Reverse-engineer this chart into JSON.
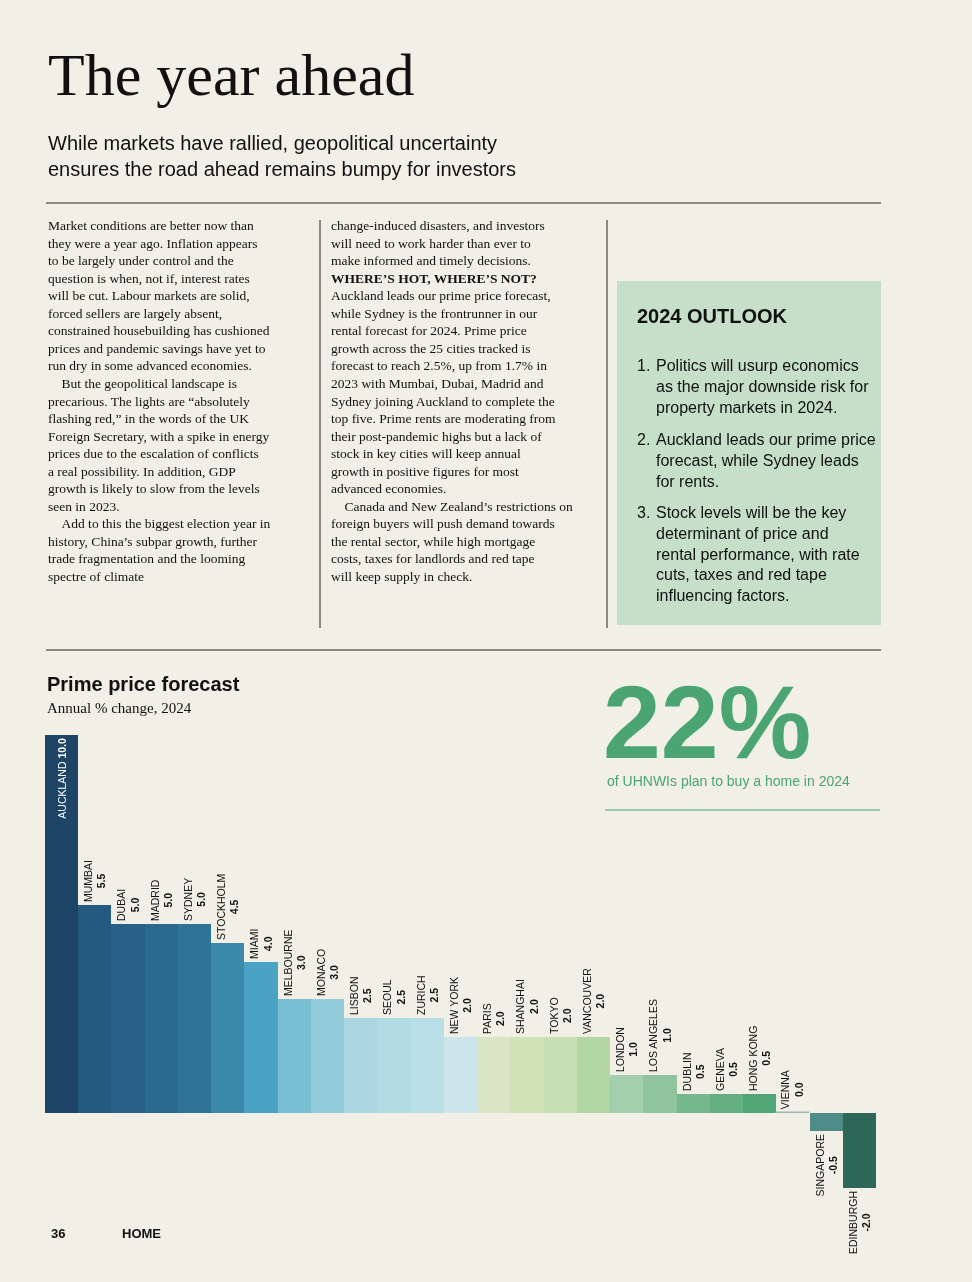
{
  "chart_data": [
    {
      "type": "other",
      "title": "The year ahead",
      "subtitle": "While markets have rallied, geopolitical uncertainty ensures the road ahead remains bumpy for investors",
      "annotations": [
        "Market conditions are better now than they were a year ago. Inflation appears to be largely under control and the question is when, not if, interest rates will be cut. Labour markets are solid, forced sellers are largely absent, constrained housebuilding has cushioned prices and pandemic savings have yet to run dry in some advanced economies.",
        "But the geopolitical landscape is precarious. The lights are “absolutely flashing red,” in the words of the UK Foreign Secretary, with a spike in energy prices due to the escalation of conflicts a real possibility. In addition, GDP growth is likely to slow from the levels seen in 2023.",
        "Add to this the biggest election year in history, China’s subpar growth, further trade fragmentation and the looming spectre of climate",
        "change-induced disasters, and investors will need to work harder than ever to make informed and timely decisions.",
        "WHERE’S HOT, WHERE’S NOT?",
        "Auckland leads our prime price forecast, while Sydney is the frontrunner in our rental forecast for 2024. Prime price growth across the 25 cities tracked is forecast to reach 2.5%, up from 1.7% in 2023 with Mumbai, Dubai, Madrid and Sydney joining Auckland to complete the top five. Prime rents are moderating from their post-pandemic highs but a lack of stock in key cities will keep annual growth in positive figures for most advanced economies.",
        "Canada and New Zealand’s restrictions on foreign buyers will push demand towards the rental sector, while high mortgage costs, taxes for landlords and red tape will keep supply in check.",
        "2024 OUTLOOK",
        "1. Politics will usurp economics as the major downside risk for property markets in 2024.",
        "2. Auckland leads our prime price forecast, while Sydney leads for rents.",
        "3. Stock levels will be the key determinant of price and rental performance, with rate cuts, taxes and red tape influencing factors.",
        "22%",
        "of UHNWIs plan to buy a home in 2024",
        "36",
        "HOME"
      ]
    },
    {
      "type": "bar",
      "title": "Prime price forecast",
      "subtitle": "Annual % change, 2024",
      "tick_labels": false,
      "categories": [
        "AUCKLAND",
        "MUMBAI",
        "DUBAI",
        "MADRID",
        "SYDNEY",
        "STOCKHOLM",
        "MIAMI",
        "MELBOURNE",
        "MONACO",
        "LISBON",
        "SEOUL",
        "ZURICH",
        "NEW YORK",
        "PARIS",
        "SHANGHAI",
        "TOKYO",
        "VANCOUVER",
        "LONDON",
        "LOS ANGELES",
        "DUBLIN",
        "GENEVA",
        "HONG KONG",
        "VIENNA",
        "SINGAPORE",
        "EDINBURGH"
      ],
      "values": [
        10.0,
        5.5,
        5.0,
        5.0,
        5.0,
        4.5,
        4.0,
        3.0,
        3.0,
        2.5,
        2.5,
        2.5,
        2.0,
        2.0,
        2.0,
        2.0,
        2.0,
        1.0,
        1.0,
        0.5,
        0.5,
        0.5,
        0.0,
        -0.5,
        -2.0
      ],
      "value_labels": [
        "10.0",
        "5.5",
        "5.0",
        "5.0",
        "5.0",
        "4.5",
        "4.0",
        "3.0",
        "3.0",
        "2.5",
        "2.5",
        "2.5",
        "2.0",
        "2.0",
        "2.0",
        "2.0",
        "2.0",
        "1.0",
        "1.0",
        "0.5",
        "0.5",
        "0.5",
        "0.0",
        "-0.5",
        "-2.0"
      ],
      "colors": [
        "#1e4466",
        "#245a80",
        "#27618a",
        "#2a6990",
        "#2f7399",
        "#3a88aa",
        "#4aa3c4",
        "#79bed3",
        "#94cbdb",
        "#abd6e1",
        "#b2dae3",
        "#badee6",
        "#cce5ea",
        "#d9e6c6",
        "#d0e3b6",
        "#c7dfb3",
        "#b3d6a5",
        "#a3cfac",
        "#8fc49c",
        "#76b88e",
        "#64ae82",
        "#4fa674",
        "#9fb8b5",
        "#4e8d87",
        "#2c6757"
      ]
    }
  ]
}
